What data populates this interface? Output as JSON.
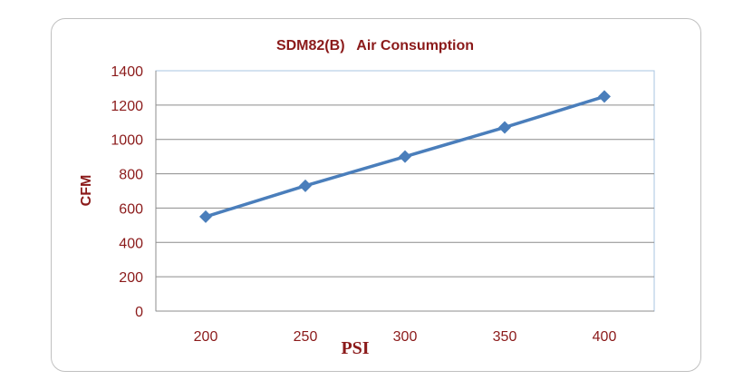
{
  "colors": {
    "text": "#8b1a1a",
    "series": "#4a7ebb",
    "grid": "#8c8c8c",
    "plot_border": "#a8c4e0"
  },
  "chart_data": {
    "type": "line",
    "title": "SDM82(B)   Air Consumption",
    "xlabel": "PSI",
    "ylabel": "CFM",
    "categories": [
      "200",
      "250",
      "300",
      "350",
      "400"
    ],
    "x": [
      200,
      250,
      300,
      350,
      400
    ],
    "series": [
      {
        "name": "Air Consumption",
        "values": [
          550,
          730,
          900,
          1070,
          1250
        ]
      }
    ],
    "ylim": [
      0,
      1400
    ],
    "yticks": [
      0,
      200,
      400,
      600,
      800,
      1000,
      1200,
      1400
    ],
    "ytick_labels": [
      "0",
      "200",
      "400",
      "600",
      "800",
      "1000",
      "1200",
      "1400"
    ],
    "grid": true,
    "legend": "none"
  }
}
